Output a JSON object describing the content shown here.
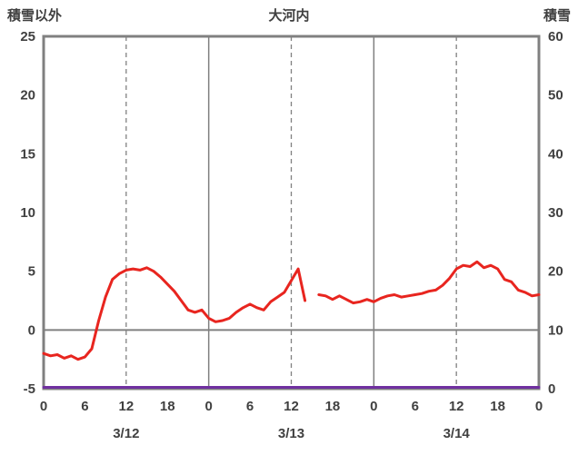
{
  "header": {
    "left_axis_title": "積雪以外",
    "station_title": "大河内",
    "right_axis_title": "積雪"
  },
  "colors": {
    "border": "#808080",
    "grid": "#808080",
    "text": "#404040",
    "red_line": "#e8251f",
    "purple_line": "#7030a0",
    "background": "#ffffff"
  },
  "chart_data": {
    "type": "line",
    "title": "大河内",
    "left_axis": {
      "label": "積雪以外",
      "min": -5,
      "max": 25,
      "tick_step": 5,
      "ticks": [
        -5,
        0,
        5,
        10,
        15,
        20,
        25
      ]
    },
    "right_axis": {
      "label": "積雪",
      "min": 0,
      "max": 60,
      "tick_step": 10,
      "ticks": [
        0,
        10,
        20,
        30,
        40,
        50,
        60
      ]
    },
    "x_axis": {
      "unit": "hour",
      "min": 0,
      "max": 72,
      "tick_hours": [
        0,
        6,
        12,
        18,
        24,
        30,
        36,
        42,
        48,
        54,
        60,
        66,
        72
      ],
      "tick_labels": [
        "0",
        "6",
        "12",
        "18",
        "0",
        "6",
        "12",
        "18",
        "0",
        "6",
        "12",
        "18",
        "0"
      ],
      "day_labels": [
        {
          "label": "3/12",
          "hour": 12
        },
        {
          "label": "3/13",
          "hour": 36
        },
        {
          "label": "3/14",
          "hour": 60
        }
      ]
    },
    "gridlines": {
      "solid_vertical_hours": [
        24,
        48
      ],
      "dashed_vertical_hours": [
        12,
        36,
        60
      ],
      "horizontal_left_axis_values": [
        0
      ]
    },
    "series": [
      {
        "label": "積雪以外",
        "axis": "left",
        "color": "#e8251f",
        "width": 3,
        "x": [
          0,
          1,
          2,
          3,
          4,
          5,
          6,
          7,
          8,
          9,
          10,
          11,
          12,
          13,
          14,
          15,
          16,
          17,
          18,
          19,
          20,
          21,
          22,
          23,
          24,
          25,
          26,
          27,
          28,
          29,
          30,
          31,
          32,
          33,
          34,
          35,
          36,
          37,
          38,
          39,
          40,
          41,
          42,
          43,
          44,
          45,
          46,
          47,
          48,
          49,
          50,
          51,
          52,
          53,
          54,
          55,
          56,
          57,
          58,
          59,
          60,
          61,
          62,
          63,
          64,
          65,
          66,
          67,
          68,
          69,
          70,
          71,
          72
        ],
        "values": [
          -2.0,
          -2.2,
          -2.1,
          -2.4,
          -2.2,
          -2.5,
          -2.3,
          -1.6,
          0.8,
          2.8,
          4.3,
          4.8,
          5.1,
          5.2,
          5.1,
          5.3,
          5.0,
          4.5,
          3.9,
          3.3,
          2.5,
          1.7,
          1.5,
          1.7,
          1.0,
          0.7,
          0.8,
          1.0,
          1.5,
          1.9,
          2.2,
          1.9,
          1.7,
          2.4,
          2.8,
          3.2,
          4.2,
          5.2,
          2.5,
          null,
          3.0,
          2.9,
          2.6,
          2.9,
          2.6,
          2.3,
          2.4,
          2.6,
          2.4,
          2.7,
          2.9,
          3.0,
          2.8,
          2.9,
          3.0,
          3.1,
          3.3,
          3.4,
          3.8,
          4.4,
          5.2,
          5.5,
          5.4,
          5.8,
          5.3,
          5.5,
          5.2,
          4.3,
          4.1,
          3.4,
          3.2,
          2.9,
          3.0
        ]
      },
      {
        "label": "積雪",
        "axis": "right",
        "color": "#7030a0",
        "width": 3,
        "x": [
          0,
          72
        ],
        "values": [
          0,
          0
        ]
      }
    ]
  }
}
